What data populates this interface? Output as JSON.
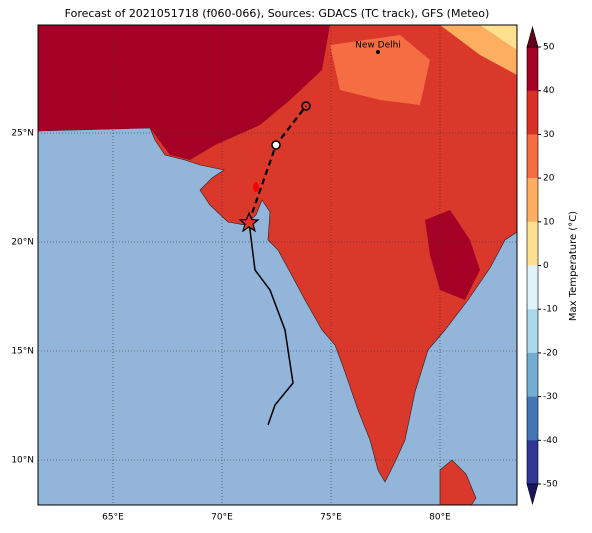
{
  "title": "Forecast of 2021051718 (f060-066), Sources: GDACS (TC track), GFS (Meteo)",
  "map": {
    "lon_labels": [
      "65°E",
      "70°E",
      "75°E",
      "80°E"
    ],
    "lat_labels": [
      "25°N",
      "20°N",
      "15°N",
      "10°N"
    ],
    "city": "New Delhi"
  },
  "colorbar": {
    "label": "Max Temperature (°C)",
    "ticks": [
      50,
      40,
      30,
      20,
      10,
      0,
      -10,
      -20,
      -30,
      -40,
      -50
    ],
    "colors": [
      "#a50026",
      "#d73027",
      "#f46d43",
      "#fdae61",
      "#fee090",
      "#e0f3f8",
      "#abd9e9",
      "#74add1",
      "#4575b4",
      "#313695"
    ],
    "over_color": "#67001f",
    "under_color": "#1b1464"
  }
}
